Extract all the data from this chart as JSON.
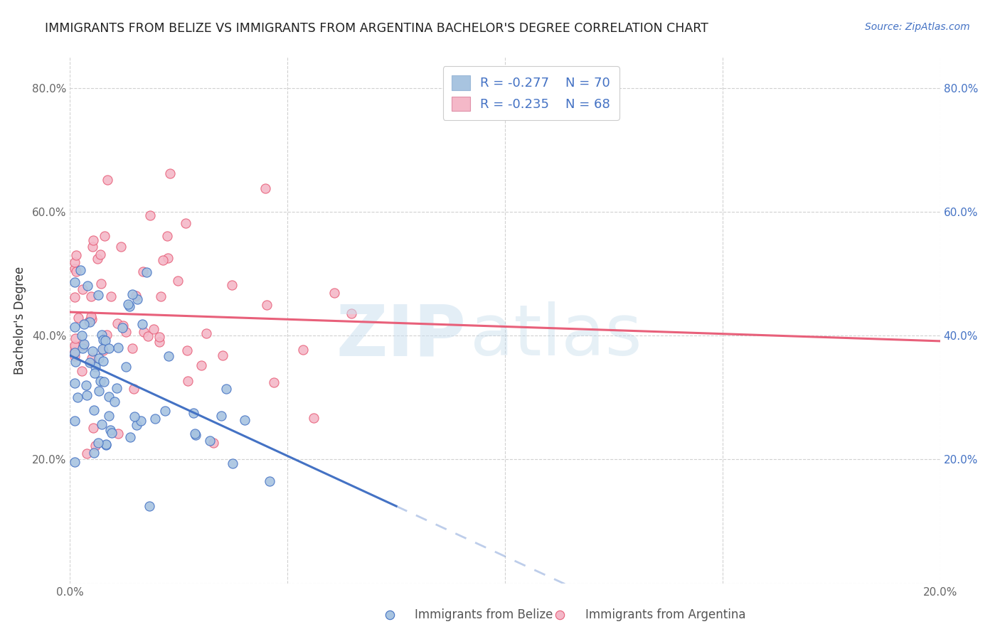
{
  "title": "IMMIGRANTS FROM BELIZE VS IMMIGRANTS FROM ARGENTINA BACHELOR'S DEGREE CORRELATION CHART",
  "source": "Source: ZipAtlas.com",
  "ylabel": "Bachelor's Degree",
  "xlim": [
    0.0,
    0.2
  ],
  "ylim": [
    0.0,
    0.85
  ],
  "belize_color": "#a8c4e0",
  "argentina_color": "#f4b8c8",
  "belize_line_color": "#4472c4",
  "argentina_line_color": "#e8607a",
  "belize_R": -0.277,
  "belize_N": 70,
  "argentina_R": -0.235,
  "argentina_N": 68,
  "legend_label_belize": "R = -0.277    N = 70",
  "legend_label_argentina": "R = -0.235    N = 68",
  "watermark_zip": "ZIP",
  "watermark_atlas": "atlas",
  "belize_scatter_seed": 7,
  "argentina_scatter_seed": 13,
  "marker_size": 90,
  "belize_line_solid_end": 0.075,
  "belize_line_dashed_end": 0.2,
  "argentina_line_end": 0.2
}
